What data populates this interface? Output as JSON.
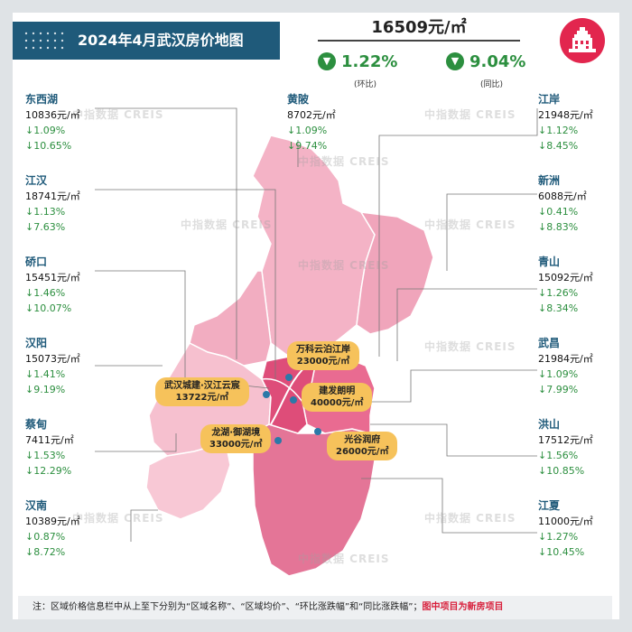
{
  "title": "2024年4月武汉房价地图",
  "summary": {
    "avg_price": "16509元/㎡",
    "mom_value": "1.22%",
    "mom_label": "(环比)",
    "yoy_value": "9.04%",
    "yoy_label": "(同比)",
    "direction": "down"
  },
  "watermark": "中指数据 CREIS",
  "districts_left": [
    {
      "name": "东西湖",
      "price": "10836元/㎡",
      "mom": "↓1.09%",
      "yoy": "↓10.65%"
    },
    {
      "name": "江汉",
      "price": "18741元/㎡",
      "mom": "↓1.13%",
      "yoy": "↓7.63%"
    },
    {
      "name": "硚口",
      "price": "15451元/㎡",
      "mom": "↓1.46%",
      "yoy": "↓10.07%"
    },
    {
      "name": "汉阳",
      "price": "15073元/㎡",
      "mom": "↓1.41%",
      "yoy": "↓9.19%"
    },
    {
      "name": "蔡甸",
      "price": "7411元/㎡",
      "mom": "↓1.53%",
      "yoy": "↓12.29%"
    },
    {
      "name": "汉南",
      "price": "10389元/㎡",
      "mom": "↓0.87%",
      "yoy": "↓8.72%"
    }
  ],
  "districts_right": [
    {
      "name": "江岸",
      "price": "21948元/㎡",
      "mom": "↓1.12%",
      "yoy": "↓8.45%"
    },
    {
      "name": "新洲",
      "price": "6088元/㎡",
      "mom": "↓0.41%",
      "yoy": "↓8.83%"
    },
    {
      "name": "青山",
      "price": "15092元/㎡",
      "mom": "↓1.26%",
      "yoy": "↓8.34%"
    },
    {
      "name": "武昌",
      "price": "21984元/㎡",
      "mom": "↓1.09%",
      "yoy": "↓7.99%"
    },
    {
      "name": "洪山",
      "price": "17512元/㎡",
      "mom": "↓1.56%",
      "yoy": "↓10.85%"
    },
    {
      "name": "江夏",
      "price": "11000元/㎡",
      "mom": "↓1.27%",
      "yoy": "↓10.45%"
    }
  ],
  "district_top": {
    "name": "黄陂",
    "price": "8702元/㎡",
    "mom": "↓1.09%",
    "yoy": "↓9.74%"
  },
  "projects": [
    {
      "name": "万科云泊江岸",
      "price": "23000元/㎡"
    },
    {
      "name": "武汉城建·汉江云宸",
      "price": "13722元/㎡"
    },
    {
      "name": "建发朗明",
      "price": "40000元/㎡"
    },
    {
      "name": "龙湖·御湖境",
      "price": "33000元/㎡"
    },
    {
      "name": "光谷润府",
      "price": "26000元/㎡"
    }
  ],
  "note": {
    "text": "注：区域价格信息栏中从上至下分别为“区域名称”、“区域均价”、“环比涨跌幅”和“同比涨跌幅”；",
    "highlight": "图中项目为新房项目"
  },
  "colors": {
    "banner": "#1f5a7a",
    "down": "#2c8f3f",
    "project": "#f6c25b",
    "core": "#e2507a",
    "logo": "#e2264e"
  }
}
